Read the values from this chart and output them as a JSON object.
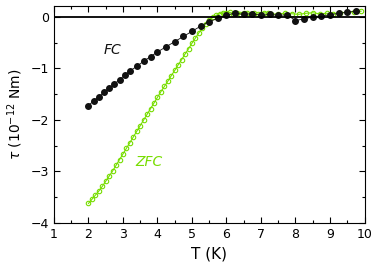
{
  "title": "",
  "xlabel": "T (K)",
  "xlim": [
    1,
    10
  ],
  "ylim": [
    -4.0,
    0.22
  ],
  "yticks": [
    0.0,
    -1.0,
    -2.0,
    -3.0,
    -4.0
  ],
  "xticks": [
    1,
    2,
    3,
    4,
    5,
    6,
    7,
    8,
    9,
    10
  ],
  "fc_color": "#111111",
  "zfc_color": "#77dd00",
  "fc_label": "FC",
  "zfc_label": "ZFC",
  "fc_T": [
    2.0,
    2.15,
    2.3,
    2.45,
    2.6,
    2.75,
    2.9,
    3.05,
    3.2,
    3.4,
    3.6,
    3.8,
    4.0,
    4.25,
    4.5,
    4.75,
    5.0,
    5.25,
    5.5,
    5.75,
    6.0,
    6.25,
    6.5,
    6.75,
    7.0,
    7.25,
    7.5,
    7.75,
    8.0,
    8.25,
    8.5,
    8.75,
    9.0,
    9.25,
    9.5,
    9.75
  ],
  "fc_tau": [
    -1.72,
    -1.63,
    -1.55,
    -1.46,
    -1.38,
    -1.3,
    -1.22,
    -1.13,
    -1.05,
    -0.96,
    -0.86,
    -0.77,
    -0.68,
    -0.58,
    -0.48,
    -0.38,
    -0.28,
    -0.18,
    -0.09,
    -0.03,
    0.04,
    0.07,
    0.05,
    0.06,
    0.03,
    0.05,
    0.03,
    0.04,
    -0.07,
    -0.04,
    0.0,
    0.02,
    0.04,
    0.07,
    0.09,
    0.11
  ],
  "zfc_T": [
    2.0,
    2.1,
    2.2,
    2.3,
    2.4,
    2.5,
    2.6,
    2.7,
    2.8,
    2.9,
    3.0,
    3.1,
    3.2,
    3.3,
    3.4,
    3.5,
    3.6,
    3.7,
    3.8,
    3.9,
    4.0,
    4.1,
    4.2,
    4.3,
    4.4,
    4.5,
    4.6,
    4.7,
    4.8,
    4.9,
    5.0,
    5.1,
    5.2,
    5.3,
    5.4,
    5.5,
    5.6,
    5.7,
    5.8,
    5.9,
    6.0,
    6.1,
    6.2,
    6.3,
    6.4,
    6.5,
    6.6,
    6.7,
    6.8,
    6.9,
    7.0,
    7.1,
    7.2,
    7.3,
    7.5,
    7.7,
    7.9,
    8.1,
    8.3,
    8.5,
    8.7,
    8.9,
    9.1,
    9.3,
    9.5,
    9.7,
    9.9
  ],
  "zfc_tau": [
    -3.62,
    -3.54,
    -3.46,
    -3.38,
    -3.29,
    -3.19,
    -3.09,
    -2.99,
    -2.88,
    -2.77,
    -2.66,
    -2.55,
    -2.44,
    -2.33,
    -2.22,
    -2.11,
    -2.0,
    -1.89,
    -1.78,
    -1.67,
    -1.56,
    -1.45,
    -1.35,
    -1.25,
    -1.14,
    -1.04,
    -0.93,
    -0.83,
    -0.72,
    -0.62,
    -0.51,
    -0.41,
    -0.31,
    -0.21,
    -0.13,
    -0.06,
    -0.01,
    0.03,
    0.06,
    0.08,
    0.07,
    0.09,
    0.06,
    0.08,
    0.05,
    0.07,
    0.08,
    0.06,
    0.07,
    0.05,
    0.06,
    0.08,
    0.07,
    0.05,
    0.06,
    0.07,
    0.06,
    0.05,
    0.07,
    0.08,
    0.06,
    0.07,
    0.06,
    0.08,
    0.09,
    0.1,
    0.11
  ],
  "background_color": "#ffffff",
  "figsize": [
    3.78,
    2.67
  ],
  "dpi": 100
}
